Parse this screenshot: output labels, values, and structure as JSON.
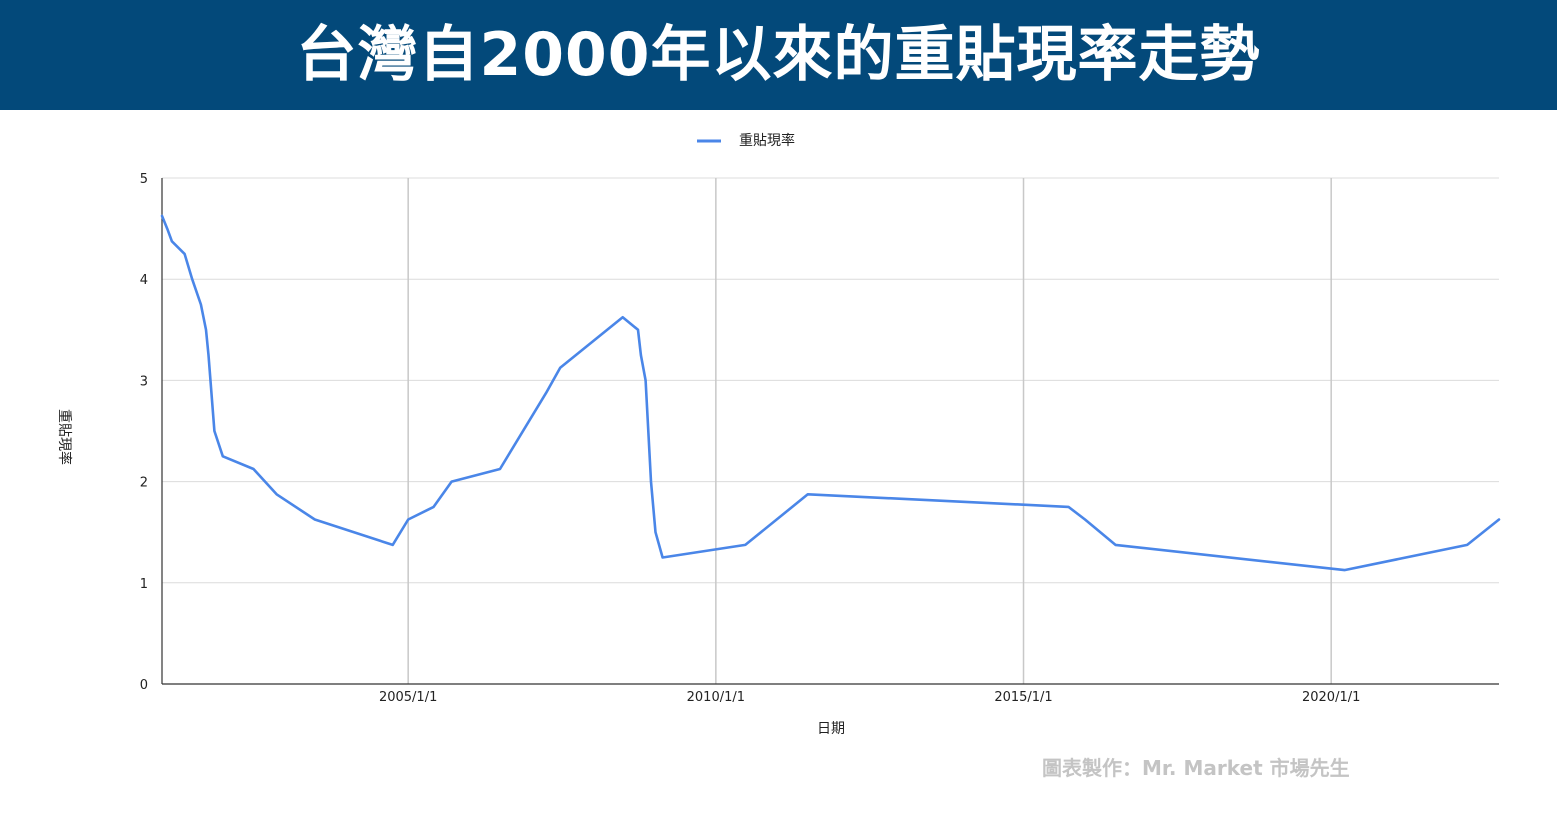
{
  "header": {
    "title": "台灣自2000年以來的重貼現率走勢"
  },
  "watermark": "圖表製作：Mr. Market 市場先生",
  "chart_data": {
    "type": "line",
    "title": "台灣自2000年以來的重貼現率走勢",
    "xlabel": "日期",
    "ylabel": "重貼現率",
    "legend_position": "top-center",
    "grid": true,
    "line_color": "#4a86e8",
    "ylim": [
      0,
      5
    ],
    "xlim": [
      "2001-01-01",
      "2022-09-23"
    ],
    "y_ticks": [
      "0",
      "1",
      "2",
      "3",
      "4",
      "5"
    ],
    "x_ticks": [
      "2005/1/1",
      "2010/1/1",
      "2015/1/1",
      "2020/1/1"
    ],
    "series": [
      {
        "name": "重貼現率",
        "x": [
          "2001-01-01",
          "2001-02-01",
          "2001-03-01",
          "2001-05-15",
          "2001-06-29",
          "2001-08-20",
          "2001-09-19",
          "2001-10-04",
          "2001-11-08",
          "2001-12-28",
          "2002-06-28",
          "2002-11-12",
          "2003-06-27",
          "2004-10-01",
          "2005-01-01",
          "2005-06-01",
          "2005-09-16",
          "2006-06-30",
          "2007-03-30",
          "2007-06-22",
          "2008-06-27",
          "2008-09-26",
          "2008-10-13",
          "2008-11-10",
          "2008-12-12",
          "2009-01-08",
          "2009-02-19",
          "2010-06-25",
          "2011-07-01",
          "2015-09-25",
          "2016-01-01",
          "2016-06-30",
          "2020-03-20",
          "2022-03-18",
          "2022-09-23"
        ],
        "values": [
          4.625,
          4.5,
          4.375,
          4.25,
          4.0,
          3.75,
          3.5,
          3.25,
          2.5,
          2.25,
          2.125,
          1.875,
          1.625,
          1.375,
          1.625,
          1.75,
          2.0,
          2.125,
          2.875,
          3.125,
          3.625,
          3.5,
          3.25,
          3.0,
          2.0,
          1.5,
          1.25,
          1.375,
          1.875,
          1.75,
          1.625,
          1.375,
          1.125,
          1.375,
          1.625
        ]
      }
    ]
  }
}
